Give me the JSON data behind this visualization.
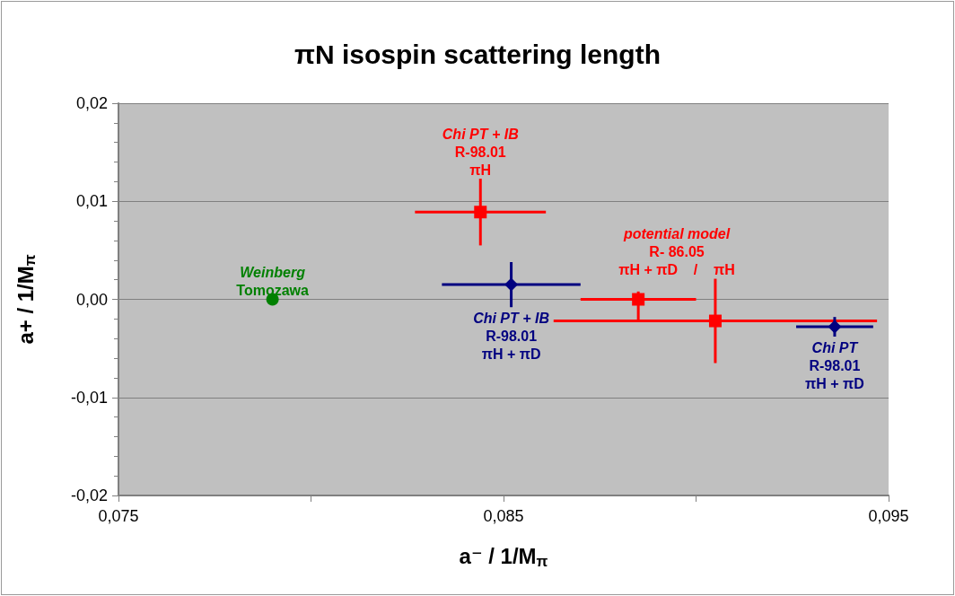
{
  "chart_data": {
    "type": "scatter",
    "title": "πN isospin scattering length",
    "xlabel": "a⁻ / 1/M$_{π}$",
    "ylabel": "a+ / 1/M$_{π}$",
    "xlim": [
      0.075,
      0.095
    ],
    "xticks": [
      {
        "value": 0.075,
        "label": "0,075"
      },
      {
        "value": 0.08,
        "label": null
      },
      {
        "value": 0.085,
        "label": "0,085"
      },
      {
        "value": 0.09,
        "label": null
      },
      {
        "value": 0.095,
        "label": "0,095"
      }
    ],
    "ylim": [
      -0.02,
      0.02
    ],
    "yticks": [
      {
        "value": -0.02,
        "label": "-0,02"
      },
      {
        "value": -0.018,
        "label": null
      },
      {
        "value": -0.016,
        "label": null
      },
      {
        "value": -0.014,
        "label": null
      },
      {
        "value": -0.012,
        "label": null
      },
      {
        "value": -0.01,
        "label": "-0,01"
      },
      {
        "value": -0.008,
        "label": null
      },
      {
        "value": -0.006,
        "label": null
      },
      {
        "value": -0.004,
        "label": null
      },
      {
        "value": -0.002,
        "label": null
      },
      {
        "value": 0,
        "label": "0,00"
      },
      {
        "value": 0.002,
        "label": null
      },
      {
        "value": 0.004,
        "label": null
      },
      {
        "value": 0.006,
        "label": null
      },
      {
        "value": 0.008,
        "label": null
      },
      {
        "value": 0.01,
        "label": "0,01"
      },
      {
        "value": 0.012,
        "label": null
      },
      {
        "value": 0.014,
        "label": null
      },
      {
        "value": 0.016,
        "label": null
      },
      {
        "value": 0.018,
        "label": null
      },
      {
        "value": 0.02,
        "label": "0,02"
      }
    ],
    "grid": "y",
    "series": [
      {
        "name": "Weinberg\nTomozawa",
        "color": "#008000",
        "marker": "circle",
        "x": [
          0.079
        ],
        "values": [
          0
        ]
      },
      {
        "name": "Chi PT + IB\nR-98.01\nπH",
        "color": "#ff0000",
        "marker": "square",
        "x": [
          0.0844
        ],
        "values": [
          0.0089
        ],
        "errors": [
          0.0034
        ],
        "xerrors": [
          0.0017
        ]
      },
      {
        "name": "Chi PT + IB\nR-98.01\nπH + πD",
        "color": "#000080",
        "marker": "diamond",
        "x": [
          0.0852
        ],
        "values": [
          0.0015
        ],
        "errors": [
          0.0023
        ],
        "xerrors": [
          0.0018
        ]
      },
      {
        "name": "potential model\nR- 86.05\nπH + πD    /    πH",
        "color": "#ff0000",
        "marker": "square",
        "x": [
          0.0885,
          0.0905
        ],
        "values": [
          0,
          -0.0022
        ],
        "errors": [
          [
            -0.0022,
            0.0008
          ],
          [
            -0.0065,
            0.0021
          ]
        ],
        "xerrors": [
          0.0015,
          [
            0.0863,
            0.0947
          ]
        ]
      },
      {
        "name": "Chi PT\nR-98.01\nπH + πD",
        "color": "#000080",
        "marker": "diamond",
        "x": [
          0.0936
        ],
        "values": [
          -0.0028
        ],
        "errors": [
          0.001
        ],
        "xerrors": [
          0.001
        ]
      }
    ]
  }
}
